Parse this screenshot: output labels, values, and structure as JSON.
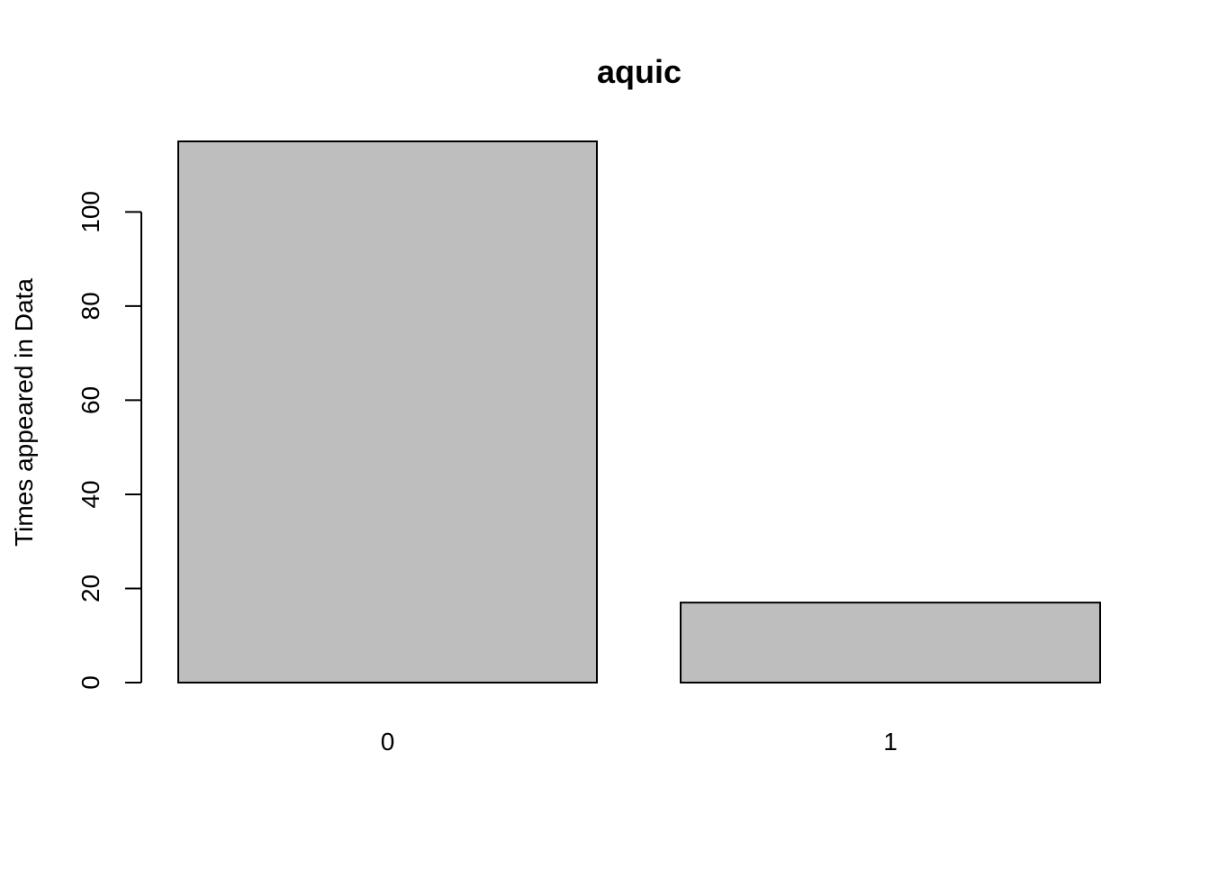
{
  "chart_data": {
    "type": "bar",
    "title": "aquic",
    "xlabel": "",
    "ylabel": "Times appeared in Data",
    "categories": [
      "0",
      "1"
    ],
    "values": [
      115,
      17
    ],
    "yticks": [
      0,
      20,
      40,
      60,
      80,
      100
    ],
    "ytick_labels": [
      "0",
      "20",
      "40",
      "60",
      "80",
      "100"
    ],
    "ylim": [
      0,
      115
    ],
    "grid": false,
    "legend": "none",
    "bar_color": "#bebebe",
    "bar_edge_color": "#000000"
  }
}
